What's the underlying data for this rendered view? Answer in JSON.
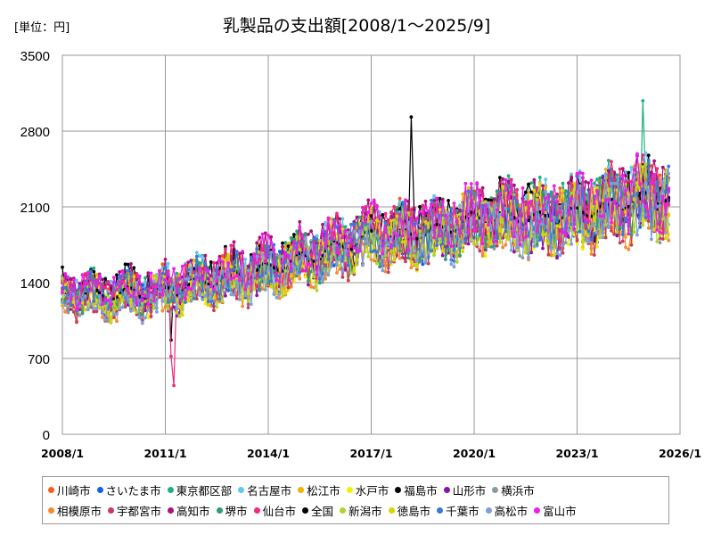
{
  "chart_data": {
    "type": "line",
    "title": "乳製品の支出額[2008/1～2025/9]",
    "unit_label": "[単位：円]",
    "xlabel": "",
    "ylabel": "",
    "x_range": [
      "2008/1",
      "2026/1"
    ],
    "x_ticks": [
      "2008/1",
      "2011/1",
      "2014/1",
      "2017/1",
      "2020/1",
      "2023/1",
      "2026/1"
    ],
    "ylim": [
      0,
      3500
    ],
    "y_ticks": [
      0,
      700,
      1400,
      2100,
      2800,
      3500
    ],
    "grid": true,
    "legend_position": "bottom",
    "series": [
      {
        "name": "川崎市",
        "color": "#ff5a1e"
      },
      {
        "name": "さいたま市",
        "color": "#1560e8"
      },
      {
        "name": "東京都区部",
        "color": "#1fb07a"
      },
      {
        "name": "名古屋市",
        "color": "#5ec8ee"
      },
      {
        "name": "松江市",
        "color": "#f5b000"
      },
      {
        "name": "水戸市",
        "color": "#f2f200"
      },
      {
        "name": "福島市",
        "color": "#000000"
      },
      {
        "name": "山形市",
        "color": "#8b12a8"
      },
      {
        "name": "横浜市",
        "color": "#8a9aa5"
      },
      {
        "name": "相模原市",
        "color": "#f58a32"
      },
      {
        "name": "宇都宮市",
        "color": "#c83c5e"
      },
      {
        "name": "高知市",
        "color": "#a8127a"
      },
      {
        "name": "堺市",
        "color": "#2e9e73"
      },
      {
        "name": "仙台市",
        "color": "#ef2a7f"
      },
      {
        "name": "全国",
        "color": "#000000"
      },
      {
        "name": "新潟市",
        "color": "#aed430"
      },
      {
        "name": "徳島市",
        "color": "#d8d800"
      },
      {
        "name": "千葉市",
        "color": "#3b78d8"
      },
      {
        "name": "高松市",
        "color": "#7f9ed8"
      },
      {
        "name": "富山市",
        "color": "#ee1de8"
      }
    ],
    "trend_by_year": {
      "years": [
        2008,
        2009,
        2010,
        2011,
        2012,
        2013,
        2014,
        2015,
        2016,
        2017,
        2018,
        2019,
        2020,
        2021,
        2022,
        2023,
        2024,
        2025
      ],
      "typical_values": [
        1300,
        1280,
        1300,
        1320,
        1400,
        1470,
        1530,
        1620,
        1720,
        1830,
        1850,
        1880,
        2000,
        2010,
        1990,
        2040,
        2120,
        2180
      ]
    },
    "annotations": {
      "min_outlier": {
        "series": "仙台市",
        "date": "2011/3",
        "value": 450
      },
      "max_outlier": {
        "series": "東京都区部",
        "date": "2024/12",
        "value": 3080
      }
    }
  }
}
